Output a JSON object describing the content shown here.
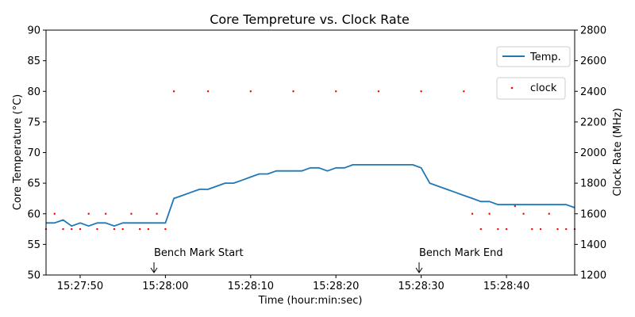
{
  "chart_data": {
    "type": "line",
    "title": "Core Tempreture vs. Clock Rate",
    "xlabel": "Time (hour:min:sec)",
    "ylabel_left": "Core Temperature (°C)",
    "ylabel_right": "Clock Rate (MHz)",
    "x_start": "15:27:46",
    "x_end": "15:28:48",
    "xlim": [
      "15:27:46",
      "15:28:48"
    ],
    "ylim_left": [
      50,
      90
    ],
    "ylim_right": [
      1200,
      2800
    ],
    "xticks": [
      "15:27:50",
      "15:28:00",
      "15:28:10",
      "15:28:20",
      "15:28:30",
      "15:28:40"
    ],
    "yticks_left": [
      50,
      55,
      60,
      65,
      70,
      75,
      80,
      85,
      90
    ],
    "yticks_right": [
      1200,
      1400,
      1600,
      1800,
      2000,
      2200,
      2400,
      2600,
      2800
    ],
    "grid": false,
    "series": [
      {
        "name": "Temp.",
        "axis": "left",
        "style": "line",
        "color": "#1f77b4",
        "x": [
          "15:27:46",
          "15:27:47",
          "15:27:48",
          "15:27:49",
          "15:27:50",
          "15:27:51",
          "15:27:52",
          "15:27:53",
          "15:27:54",
          "15:27:55",
          "15:27:56",
          "15:27:57",
          "15:27:58",
          "15:27:59",
          "15:28:00",
          "15:28:01",
          "15:28:02",
          "15:28:03",
          "15:28:04",
          "15:28:05",
          "15:28:06",
          "15:28:07",
          "15:28:08",
          "15:28:09",
          "15:28:10",
          "15:28:11",
          "15:28:12",
          "15:28:13",
          "15:28:14",
          "15:28:15",
          "15:28:16",
          "15:28:17",
          "15:28:18",
          "15:28:19",
          "15:28:20",
          "15:28:21",
          "15:28:22",
          "15:28:23",
          "15:28:24",
          "15:28:25",
          "15:28:26",
          "15:28:27",
          "15:28:28",
          "15:28:29",
          "15:28:30",
          "15:28:31",
          "15:28:32",
          "15:28:33",
          "15:28:34",
          "15:28:35",
          "15:28:36",
          "15:28:37",
          "15:28:38",
          "15:28:39",
          "15:28:40",
          "15:28:41",
          "15:28:42",
          "15:28:43",
          "15:28:44",
          "15:28:45",
          "15:28:46",
          "15:28:47",
          "15:28:48"
        ],
        "values": [
          58.5,
          58.5,
          59,
          58,
          58.5,
          58,
          58.5,
          58.5,
          58,
          58.5,
          58.5,
          58.5,
          58.5,
          58.5,
          58.5,
          62.5,
          63,
          63.5,
          64,
          64,
          64.5,
          65,
          65,
          65.5,
          66,
          66.5,
          66.5,
          67,
          67,
          67,
          67,
          67.5,
          67.5,
          67,
          67.5,
          67.5,
          68,
          68,
          68,
          68,
          68,
          68,
          68,
          68,
          67.5,
          65,
          64.5,
          64,
          63.5,
          63,
          62.5,
          62,
          62,
          61.5,
          61.5,
          61.5,
          61.5,
          61.5,
          61.5,
          61.5,
          61.5,
          61.5,
          61
        ]
      },
      {
        "name": "clock",
        "axis": "right",
        "style": "scatter",
        "color": "#ff0000",
        "points": [
          {
            "x": "15:27:46",
            "y": 1500
          },
          {
            "x": "15:27:47",
            "y": 1600
          },
          {
            "x": "15:27:48",
            "y": 1500
          },
          {
            "x": "15:27:49",
            "y": 1500
          },
          {
            "x": "15:27:50",
            "y": 1500
          },
          {
            "x": "15:27:51",
            "y": 1600
          },
          {
            "x": "15:27:52",
            "y": 1500
          },
          {
            "x": "15:27:53",
            "y": 1600
          },
          {
            "x": "15:27:54",
            "y": 1500
          },
          {
            "x": "15:27:55",
            "y": 1500
          },
          {
            "x": "15:27:56",
            "y": 1600
          },
          {
            "x": "15:27:57",
            "y": 1500
          },
          {
            "x": "15:27:58",
            "y": 1500
          },
          {
            "x": "15:27:59",
            "y": 1600
          },
          {
            "x": "15:28:00",
            "y": 1500
          },
          {
            "x": "15:28:01",
            "y": 2400
          },
          {
            "x": "15:28:05",
            "y": 2400
          },
          {
            "x": "15:28:10",
            "y": 2400
          },
          {
            "x": "15:28:15",
            "y": 2400
          },
          {
            "x": "15:28:20",
            "y": 2400
          },
          {
            "x": "15:28:25",
            "y": 2400
          },
          {
            "x": "15:28:30",
            "y": 2400
          },
          {
            "x": "15:28:35",
            "y": 2400
          },
          {
            "x": "15:28:36",
            "y": 1600
          },
          {
            "x": "15:28:37",
            "y": 1500
          },
          {
            "x": "15:28:38",
            "y": 1600
          },
          {
            "x": "15:28:39",
            "y": 1500
          },
          {
            "x": "15:28:40",
            "y": 1500
          },
          {
            "x": "15:28:41",
            "y": 1650
          },
          {
            "x": "15:28:42",
            "y": 1600
          },
          {
            "x": "15:28:43",
            "y": 1500
          },
          {
            "x": "15:28:44",
            "y": 1500
          },
          {
            "x": "15:28:45",
            "y": 1600
          },
          {
            "x": "15:28:46",
            "y": 1500
          },
          {
            "x": "15:28:47",
            "y": 1500
          },
          {
            "x": "15:28:48",
            "y": 1500
          }
        ]
      }
    ],
    "annotations": [
      {
        "text": "Bench Mark Start",
        "x": "15:28:00"
      },
      {
        "text": "Bench Mark End",
        "x": "15:28:30"
      }
    ],
    "legend": [
      {
        "label": "Temp.",
        "placement": "upper-right"
      },
      {
        "label": "clock",
        "placement": "upper-right"
      }
    ]
  }
}
